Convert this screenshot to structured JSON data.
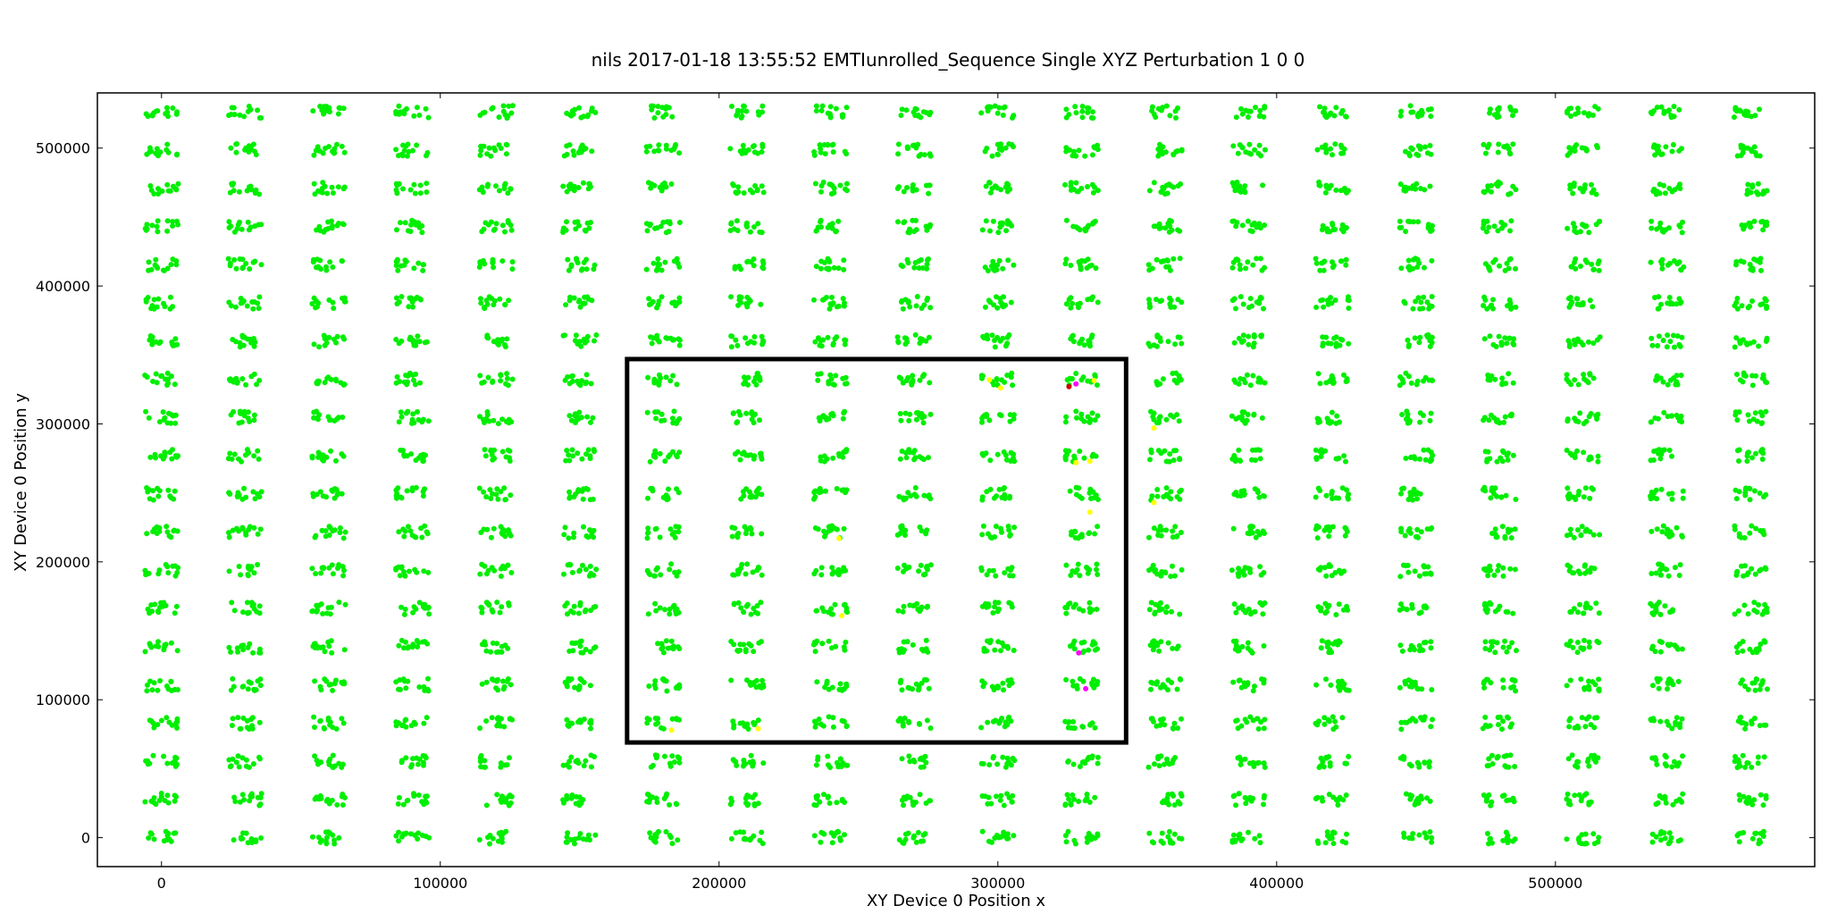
{
  "chart_data": {
    "type": "scatter",
    "title": "nils 2017-01-18 13:55:52 EMTIunrolled_Sequence Single XYZ Perturbation 1 0 0",
    "xlabel": "XY Device 0 Position  x",
    "ylabel": "XY Device 0 Position  y",
    "xlim": [
      -23000,
      593000
    ],
    "ylim": [
      -21000,
      540000
    ],
    "xticks": [
      0,
      100000,
      200000,
      300000,
      400000,
      500000
    ],
    "yticks": [
      0,
      100000,
      200000,
      300000,
      400000,
      500000
    ],
    "grid": false,
    "legend": "none",
    "grid_clusters": {
      "x_centers": [
        0,
        30000,
        60000,
        90000,
        120000,
        150000,
        180000,
        210000,
        240000,
        270000,
        300000,
        330000,
        360000,
        390000,
        420000,
        450000,
        480000,
        510000,
        540000,
        570000
      ],
      "y_centers": [
        0,
        27700,
        55400,
        83100,
        110800,
        138500,
        166200,
        193900,
        221600,
        249300,
        277000,
        304700,
        332400,
        360100,
        387800,
        415500,
        443200,
        470900,
        498600,
        526300
      ],
      "points_per_cluster": 14,
      "cluster_spread_x": 12000,
      "cluster_spread_y": 9000,
      "point_color": "#00ee00"
    },
    "highlight_points": [
      {
        "x": 325500,
        "y": 327000,
        "color": "#cc0000"
      },
      {
        "x": 328000,
        "y": 329000,
        "color": "#ff00ff"
      },
      {
        "x": 334500,
        "y": 331500,
        "color": "#ffff00"
      },
      {
        "x": 297000,
        "y": 332000,
        "color": "#ffff00"
      },
      {
        "x": 301000,
        "y": 326000,
        "color": "#ffff00"
      },
      {
        "x": 328000,
        "y": 272000,
        "color": "#ffff00"
      },
      {
        "x": 333000,
        "y": 273000,
        "color": "#ffff00"
      },
      {
        "x": 356000,
        "y": 297000,
        "color": "#ffff00"
      },
      {
        "x": 333000,
        "y": 236000,
        "color": "#ffff00"
      },
      {
        "x": 356000,
        "y": 243000,
        "color": "#ffff00"
      },
      {
        "x": 243000,
        "y": 217000,
        "color": "#ffff00"
      },
      {
        "x": 329000,
        "y": 134000,
        "color": "#ff00ff"
      },
      {
        "x": 331500,
        "y": 108000,
        "color": "#ff00ff"
      },
      {
        "x": 183000,
        "y": 78000,
        "color": "#ffff00"
      },
      {
        "x": 214000,
        "y": 79000,
        "color": "#ffff00"
      },
      {
        "x": 244000,
        "y": 161000,
        "color": "#ffff00"
      }
    ],
    "rectangle": {
      "x_range": [
        167000,
        346000
      ],
      "y_range": [
        69000,
        347000
      ],
      "color": "#000000"
    }
  }
}
